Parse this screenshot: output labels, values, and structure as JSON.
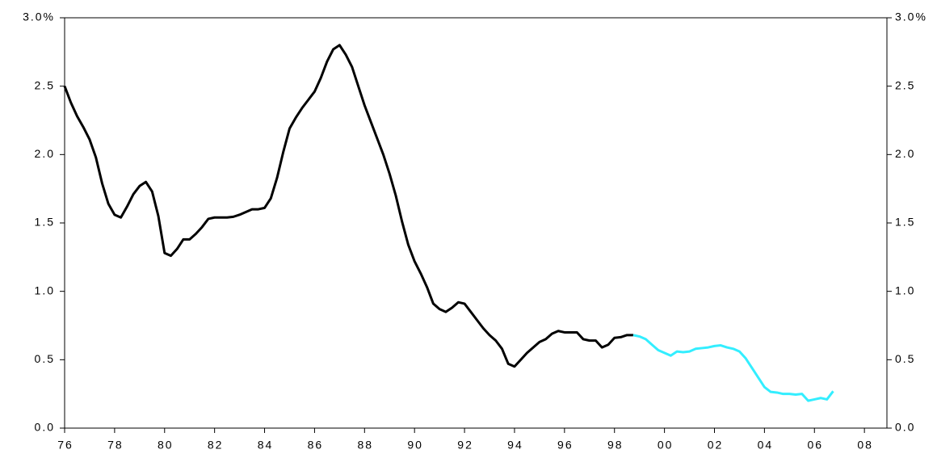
{
  "chart_data": {
    "type": "line",
    "series": [
      {
        "color": "#000000",
        "x": [
          1976,
          1976.25,
          1976.5,
          1976.75,
          1977,
          1977.25,
          1977.5,
          1977.75,
          1978,
          1978.25,
          1978.5,
          1978.75,
          1979,
          1979.25,
          1979.5,
          1979.75,
          1980,
          1980.25,
          1980.5,
          1980.75,
          1981,
          1981.25,
          1981.5,
          1981.75,
          1982,
          1982.25,
          1982.5,
          1982.75,
          1983,
          1983.25,
          1983.5,
          1983.75,
          1984,
          1984.25,
          1984.5,
          1984.75,
          1985,
          1985.25,
          1985.5,
          1985.75,
          1986,
          1986.25,
          1986.5,
          1986.75,
          1987,
          1987.25,
          1987.5,
          1987.75,
          1988,
          1988.25,
          1988.5,
          1988.75,
          1989,
          1989.25,
          1989.5,
          1989.75,
          1990,
          1990.25,
          1990.5,
          1990.75,
          1991,
          1991.25,
          1991.5,
          1991.75,
          1992,
          1992.25,
          1992.5,
          1992.75,
          1993,
          1993.25,
          1993.5,
          1993.75,
          1994,
          1994.25,
          1994.5,
          1994.75,
          1995,
          1995.25,
          1995.5,
          1995.75,
          1996,
          1996.25,
          1996.5,
          1996.75,
          1997,
          1997.25,
          1997.5,
          1997.75,
          1998,
          1998.25,
          1998.5,
          1998.75
        ],
        "values": [
          2.5,
          2.38,
          2.28,
          2.2,
          2.11,
          1.98,
          1.79,
          1.64,
          1.56,
          1.54,
          1.62,
          1.71,
          1.77,
          1.8,
          1.73,
          1.55,
          1.28,
          1.26,
          1.31,
          1.38,
          1.38,
          1.42,
          1.47,
          1.53,
          1.54,
          1.54,
          1.54,
          1.545,
          1.56,
          1.58,
          1.6,
          1.6,
          1.61,
          1.68,
          1.83,
          2.02,
          2.19,
          2.27,
          2.34,
          2.4,
          2.46,
          2.56,
          2.68,
          2.77,
          2.8,
          2.73,
          2.64,
          2.5,
          2.36,
          2.24,
          2.12,
          2.0,
          1.86,
          1.7,
          1.51,
          1.34,
          1.22,
          1.13,
          1.03,
          0.91,
          0.87,
          0.85,
          0.88,
          0.92,
          0.91,
          0.85,
          0.79,
          0.73,
          0.68,
          0.64,
          0.58,
          0.47,
          0.45,
          0.5,
          0.55,
          0.59,
          0.63,
          0.65,
          0.69,
          0.71,
          0.7,
          0.7,
          0.7,
          0.65,
          0.64,
          0.64,
          0.59,
          0.61,
          0.66,
          0.665,
          0.68,
          0.68
        ]
      },
      {
        "color": "#33eeff",
        "x": [
          1998.75,
          1999,
          1999.25,
          1999.5,
          1999.75,
          2000,
          2000.25,
          2000.5,
          2000.75,
          2001,
          2001.25,
          2001.5,
          2001.75,
          2002,
          2002.25,
          2002.5,
          2002.75,
          2003,
          2003.25,
          2003.5,
          2003.75,
          2004,
          2004.25,
          2004.5,
          2004.75,
          2005,
          2005.25,
          2005.5,
          2005.75,
          2006,
          2006.25,
          2006.5,
          2006.75
        ],
        "values": [
          0.68,
          0.67,
          0.65,
          0.61,
          0.57,
          0.55,
          0.53,
          0.56,
          0.555,
          0.56,
          0.58,
          0.585,
          0.59,
          0.6,
          0.605,
          0.59,
          0.58,
          0.56,
          0.51,
          0.44,
          0.37,
          0.3,
          0.265,
          0.26,
          0.25,
          0.25,
          0.245,
          0.25,
          0.2,
          0.21,
          0.22,
          0.21,
          0.27
        ]
      }
    ],
    "xlim": [
      1976,
      2008.9
    ],
    "xticks": [
      {
        "value": 1976,
        "label": "76"
      },
      {
        "value": 1978,
        "label": "78"
      },
      {
        "value": 1980,
        "label": "80"
      },
      {
        "value": 1982,
        "label": "82"
      },
      {
        "value": 1984,
        "label": "84"
      },
      {
        "value": 1986,
        "label": "86"
      },
      {
        "value": 1988,
        "label": "88"
      },
      {
        "value": 1990,
        "label": "90"
      },
      {
        "value": 1992,
        "label": "92"
      },
      {
        "value": 1994,
        "label": "94"
      },
      {
        "value": 1996,
        "label": "96"
      },
      {
        "value": 1998,
        "label": "98"
      },
      {
        "value": 2000,
        "label": "00"
      },
      {
        "value": 2002,
        "label": "02"
      },
      {
        "value": 2004,
        "label": "04"
      },
      {
        "value": 2006,
        "label": "06"
      },
      {
        "value": 2008,
        "label": "08"
      }
    ],
    "ylim": [
      0,
      3
    ],
    "yticks": [
      {
        "value": 0,
        "label": "0.0"
      },
      0.5,
      {
        "value": 1,
        "label": "1.0"
      },
      1.5,
      {
        "value": 2,
        "label": "2.0"
      },
      2.5,
      {
        "value": 3,
        "label": "3.0%"
      }
    ],
    "y2lim": [
      0,
      3
    ],
    "y2ticks": [
      {
        "value": 0,
        "label": "0.0"
      },
      0.5,
      {
        "value": 1,
        "label": "1.0"
      },
      1.5,
      {
        "value": 2,
        "label": "2.0"
      },
      2.5,
      {
        "value": 3,
        "label": "3.0%"
      }
    ],
    "grid": false
  }
}
